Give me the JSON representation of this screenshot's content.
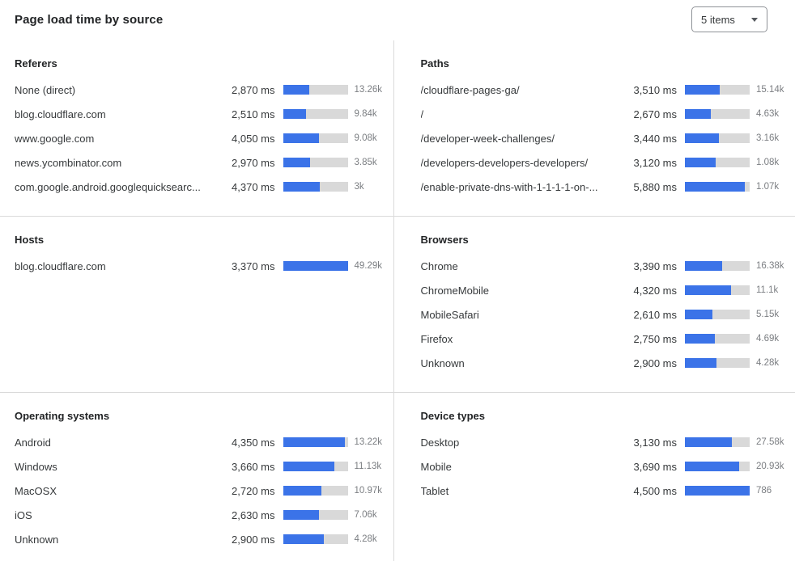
{
  "header": {
    "title": "Page load time by source",
    "items_select": {
      "value": "5 items"
    }
  },
  "colors": {
    "bar_fill": "#3b73e8",
    "bar_track": "#d9d9d9",
    "divider": "#dadada",
    "heading_text": "#222426",
    "body_text": "#36393b",
    "count_text": "#7b7e82"
  },
  "sections": [
    {
      "id": "referers",
      "title": "Referers",
      "rows": [
        {
          "label": "None (direct)",
          "ms": "2,870 ms",
          "count": "13.26k",
          "bar_pct": 40
        },
        {
          "label": "blog.cloudflare.com",
          "ms": "2,510 ms",
          "count": "9.84k",
          "bar_pct": 35
        },
        {
          "label": "www.google.com",
          "ms": "4,050 ms",
          "count": "9.08k",
          "bar_pct": 55
        },
        {
          "label": "news.ycombinator.com",
          "ms": "2,970 ms",
          "count": "3.85k",
          "bar_pct": 42
        },
        {
          "label": "com.google.android.googlequicksearc...",
          "ms": "4,370 ms",
          "count": "3k",
          "bar_pct": 57
        }
      ]
    },
    {
      "id": "paths",
      "title": "Paths",
      "rows": [
        {
          "label": "/cloudflare-pages-ga/",
          "ms": "3,510 ms",
          "count": "15.14k",
          "bar_pct": 54
        },
        {
          "label": "/",
          "ms": "2,670 ms",
          "count": "4.63k",
          "bar_pct": 40
        },
        {
          "label": "/developer-week-challenges/",
          "ms": "3,440 ms",
          "count": "3.16k",
          "bar_pct": 53
        },
        {
          "label": "/developers-developers-developers/",
          "ms": "3,120 ms",
          "count": "1.08k",
          "bar_pct": 48
        },
        {
          "label": "/enable-private-dns-with-1-1-1-1-on-...",
          "ms": "5,880 ms",
          "count": "1.07k",
          "bar_pct": 92
        }
      ]
    },
    {
      "id": "hosts",
      "title": "Hosts",
      "rows": [
        {
          "label": "blog.cloudflare.com",
          "ms": "3,370 ms",
          "count": "49.29k",
          "bar_pct": 100
        }
      ]
    },
    {
      "id": "browsers",
      "title": "Browsers",
      "rows": [
        {
          "label": "Chrome",
          "ms": "3,390 ms",
          "count": "16.38k",
          "bar_pct": 57
        },
        {
          "label": "ChromeMobile",
          "ms": "4,320 ms",
          "count": "11.1k",
          "bar_pct": 71
        },
        {
          "label": "MobileSafari",
          "ms": "2,610 ms",
          "count": "5.15k",
          "bar_pct": 43
        },
        {
          "label": "Firefox",
          "ms": "2,750 ms",
          "count": "4.69k",
          "bar_pct": 46
        },
        {
          "label": "Unknown",
          "ms": "2,900 ms",
          "count": "4.28k",
          "bar_pct": 49
        }
      ]
    },
    {
      "id": "operating-systems",
      "title": "Operating systems",
      "rows": [
        {
          "label": "Android",
          "ms": "4,350 ms",
          "count": "13.22k",
          "bar_pct": 95
        },
        {
          "label": "Windows",
          "ms": "3,660 ms",
          "count": "11.13k",
          "bar_pct": 79
        },
        {
          "label": "MacOSX",
          "ms": "2,720 ms",
          "count": "10.97k",
          "bar_pct": 59
        },
        {
          "label": "iOS",
          "ms": "2,630 ms",
          "count": "7.06k",
          "bar_pct": 56
        },
        {
          "label": "Unknown",
          "ms": "2,900 ms",
          "count": "4.28k",
          "bar_pct": 63
        }
      ]
    },
    {
      "id": "device-types",
      "title": "Device types",
      "rows": [
        {
          "label": "Desktop",
          "ms": "3,130 ms",
          "count": "27.58k",
          "bar_pct": 72
        },
        {
          "label": "Mobile",
          "ms": "3,690 ms",
          "count": "20.93k",
          "bar_pct": 84
        },
        {
          "label": "Tablet",
          "ms": "4,500 ms",
          "count": "786",
          "bar_pct": 100
        }
      ]
    }
  ]
}
